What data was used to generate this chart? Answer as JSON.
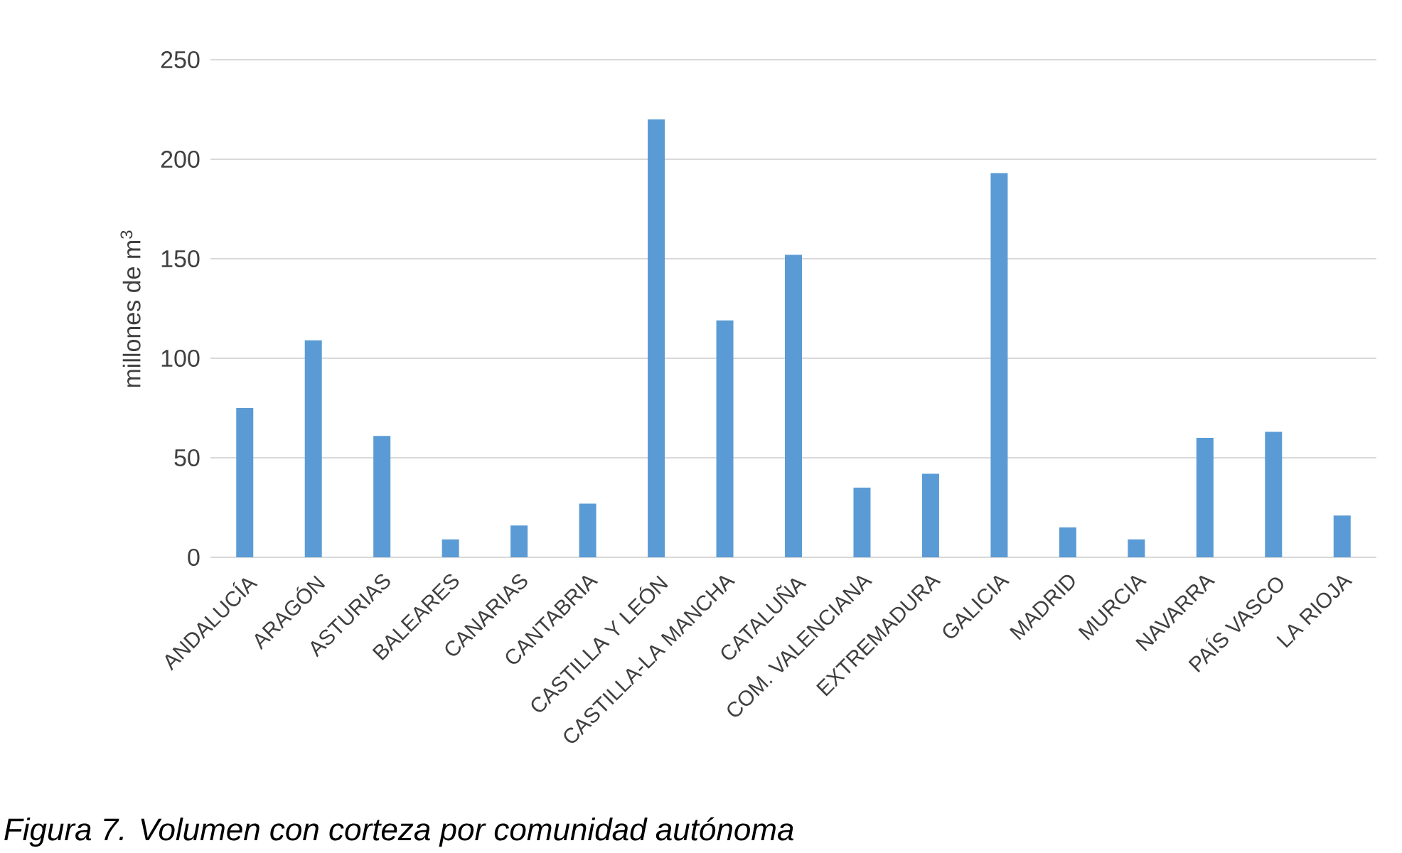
{
  "chart_data": {
    "type": "bar",
    "ylabel": "millones de m$^{3}$",
    "categories": [
      "ANDALUCÍA",
      "ARAGÓN",
      "ASTURIAS",
      "BALEARES",
      "CANARIAS",
      "CANTABRIA",
      "CASTILLA Y LEÓN",
      "CASTILLA-LA MANCHA",
      "CATALUÑA",
      "COM. VALENCIANA",
      "EXTREMADURA",
      "GALICIA",
      "MADRID",
      "MURCIA",
      "NAVARRA",
      "PAÍS VASCO",
      "LA RIOJA"
    ],
    "values": [
      75,
      109,
      61,
      9,
      16,
      27,
      220,
      119,
      152,
      35,
      42,
      193,
      15,
      9,
      60,
      63,
      21
    ],
    "color": "#5b9bd5",
    "ylim": [
      0,
      250
    ],
    "yticks": [
      0,
      50,
      100,
      150,
      200,
      250
    ],
    "grid": "y",
    "annotations": [
      "*Figura 7. Volumen con corteza por comunidad autónoma*"
    ]
  }
}
